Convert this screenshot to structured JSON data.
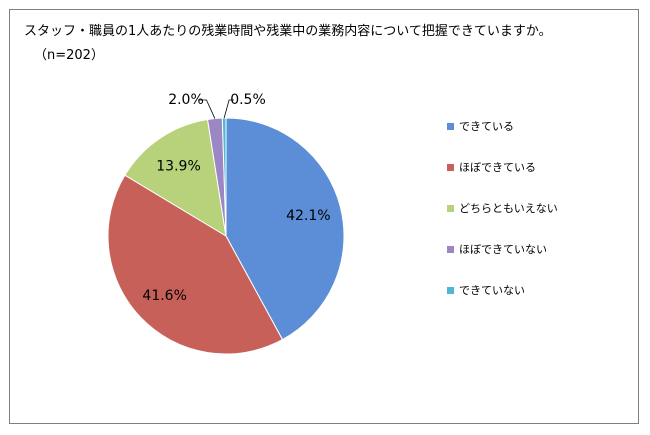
{
  "chart_data": {
    "type": "pie",
    "title": "スタッフ・職員の1人あたりの残業時間や残業中の業務内容について把握できていますか。",
    "subtitle": "（n=202）",
    "categories": [
      "できている",
      "ほぼできている",
      "どちらともいえない",
      "ほぼできていない",
      "できていない"
    ],
    "values": [
      42.1,
      41.6,
      13.9,
      2.0,
      0.5
    ],
    "labels": [
      "42.1%",
      "41.6%",
      "13.9%",
      "2.0%",
      "0.5%"
    ],
    "colors": [
      "#5B8ED6",
      "#C8605A",
      "#B7D27A",
      "#9C86C4",
      "#4BB8D6"
    ],
    "legend_position": "right"
  }
}
